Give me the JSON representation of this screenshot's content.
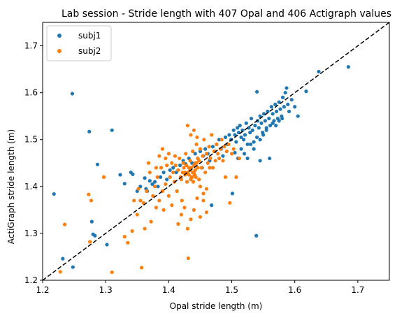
{
  "chart_data": {
    "type": "scatter",
    "title": "Lab session - Stride length with 407 Opal and 406 Actigraph values",
    "xlabel": "Opal stride length (m)",
    "ylabel": "ActiGraph stride length (m)",
    "xlim": [
      1.2,
      1.75
    ],
    "ylim": [
      1.2,
      1.75
    ],
    "xticks": [
      1.2,
      1.3,
      1.4,
      1.5,
      1.6,
      1.7
    ],
    "yticks": [
      1.2,
      1.3,
      1.4,
      1.5,
      1.6,
      1.7
    ],
    "xtick_labels": [
      "1.2",
      "1.3",
      "1.4",
      "1.5",
      "1.6",
      "1.7"
    ],
    "ytick_labels": [
      "1.2",
      "1.3",
      "1.4",
      "1.5",
      "1.6",
      "1.7"
    ],
    "grid": false,
    "legend_position": "top-left",
    "reference_line": {
      "style": "dashed",
      "color": "#000000",
      "from": [
        1.2,
        1.2
      ],
      "to": [
        1.75,
        1.75
      ]
    },
    "series": [
      {
        "name": "subj1",
        "color": "#1f77b4",
        "points": [
          [
            1.218,
            1.384
          ],
          [
            1.232,
            1.246
          ],
          [
            1.247,
            1.598
          ],
          [
            1.248,
            1.228
          ],
          [
            1.274,
            1.517
          ],
          [
            1.278,
            1.325
          ],
          [
            1.28,
            1.298
          ],
          [
            1.283,
            1.295
          ],
          [
            1.287,
            1.447
          ],
          [
            1.302,
            1.276
          ],
          [
            1.31,
            1.52
          ],
          [
            1.323,
            1.425
          ],
          [
            1.33,
            1.406
          ],
          [
            1.34,
            1.43
          ],
          [
            1.343,
            1.426
          ],
          [
            1.35,
            1.39
          ],
          [
            1.355,
            1.4
          ],
          [
            1.362,
            1.418
          ],
          [
            1.364,
            1.395
          ],
          [
            1.366,
            1.39
          ],
          [
            1.37,
            1.412
          ],
          [
            1.374,
            1.405
          ],
          [
            1.378,
            1.41
          ],
          [
            1.383,
            1.4
          ],
          [
            1.387,
            1.42
          ],
          [
            1.392,
            1.43
          ],
          [
            1.397,
            1.415
          ],
          [
            1.402,
            1.435
          ],
          [
            1.407,
            1.44
          ],
          [
            1.412,
            1.43
          ],
          [
            1.418,
            1.445
          ],
          [
            1.423,
            1.455
          ],
          [
            1.427,
            1.448
          ],
          [
            1.432,
            1.46
          ],
          [
            1.437,
            1.45
          ],
          [
            1.442,
            1.47
          ],
          [
            1.446,
            1.46
          ],
          [
            1.45,
            1.475
          ],
          [
            1.453,
            1.44
          ],
          [
            1.455,
            1.465
          ],
          [
            1.458,
            1.48
          ],
          [
            1.462,
            1.47
          ],
          [
            1.465,
            1.455
          ],
          [
            1.468,
            1.36
          ],
          [
            1.47,
            1.485
          ],
          [
            1.473,
            1.475
          ],
          [
            1.476,
            1.49
          ],
          [
            1.48,
            1.5
          ],
          [
            1.483,
            1.48
          ],
          [
            1.486,
            1.465
          ],
          [
            1.49,
            1.505
          ],
          [
            1.493,
            1.49
          ],
          [
            1.496,
            1.51
          ],
          [
            1.499,
            1.5
          ],
          [
            1.501,
            1.385
          ],
          [
            1.503,
            1.52
          ],
          [
            1.505,
            1.51
          ],
          [
            1.507,
            1.495
          ],
          [
            1.509,
            1.525
          ],
          [
            1.511,
            1.515
          ],
          [
            1.513,
            1.53
          ],
          [
            1.515,
            1.505
          ],
          [
            1.517,
            1.52
          ],
          [
            1.519,
            1.5
          ],
          [
            1.521,
            1.51
          ],
          [
            1.523,
            1.535
          ],
          [
            1.525,
            1.49
          ],
          [
            1.527,
            1.525
          ],
          [
            1.529,
            1.515
          ],
          [
            1.531,
            1.545
          ],
          [
            1.533,
            1.52
          ],
          [
            1.535,
            1.48
          ],
          [
            1.537,
            1.53
          ],
          [
            1.539,
            1.295
          ],
          [
            1.541,
            1.54
          ],
          [
            1.543,
            1.525
          ],
          [
            1.545,
            1.55
          ],
          [
            1.547,
            1.535
          ],
          [
            1.549,
            1.515
          ],
          [
            1.551,
            1.555
          ],
          [
            1.553,
            1.54
          ],
          [
            1.555,
            1.525
          ],
          [
            1.557,
            1.56
          ],
          [
            1.559,
            1.545
          ],
          [
            1.561,
            1.53
          ],
          [
            1.563,
            1.57
          ],
          [
            1.565,
            1.555
          ],
          [
            1.567,
            1.54
          ],
          [
            1.569,
            1.575
          ],
          [
            1.571,
            1.56
          ],
          [
            1.573,
            1.545
          ],
          [
            1.575,
            1.58
          ],
          [
            1.577,
            1.565
          ],
          [
            1.579,
            1.55
          ],
          [
            1.581,
            1.59
          ],
          [
            1.583,
            1.57
          ],
          [
            1.585,
            1.6
          ],
          [
            1.587,
            1.61
          ],
          [
            1.589,
            1.575
          ],
          [
            1.591,
            1.56
          ],
          [
            1.595,
            1.585
          ],
          [
            1.6,
            1.57
          ],
          [
            1.605,
            1.55
          ],
          [
            1.618,
            1.603
          ],
          [
            1.638,
            1.645
          ],
          [
            1.685,
            1.655
          ],
          [
            1.54,
            1.602
          ],
          [
            1.545,
            1.455
          ],
          [
            1.505,
            1.472
          ],
          [
            1.51,
            1.46
          ],
          [
            1.515,
            1.48
          ],
          [
            1.52,
            1.47
          ],
          [
            1.525,
            1.46
          ],
          [
            1.53,
            1.49
          ],
          [
            1.535,
            1.495
          ],
          [
            1.54,
            1.505
          ],
          [
            1.545,
            1.5
          ],
          [
            1.55,
            1.51
          ],
          [
            1.555,
            1.52
          ],
          [
            1.56,
            1.46
          ],
          [
            1.565,
            1.535
          ],
          [
            1.57,
            1.53
          ],
          [
            1.575,
            1.54
          ],
          [
            1.58,
            1.545
          ]
        ]
      },
      {
        "name": "subj2",
        "color": "#ff7f0e",
        "points": [
          [
            1.228,
            1.218
          ],
          [
            1.235,
            1.319
          ],
          [
            1.273,
            1.383
          ],
          [
            1.275,
            1.282
          ],
          [
            1.277,
            1.37
          ],
          [
            1.297,
            1.42
          ],
          [
            1.31,
            1.217
          ],
          [
            1.33,
            1.293
          ],
          [
            1.335,
            1.28
          ],
          [
            1.342,
            1.305
          ],
          [
            1.345,
            1.37
          ],
          [
            1.35,
            1.34
          ],
          [
            1.352,
            1.395
          ],
          [
            1.355,
            1.37
          ],
          [
            1.357,
            1.227
          ],
          [
            1.36,
            1.365
          ],
          [
            1.362,
            1.31
          ],
          [
            1.365,
            1.39
          ],
          [
            1.368,
            1.45
          ],
          [
            1.37,
            1.43
          ],
          [
            1.372,
            1.325
          ],
          [
            1.375,
            1.38
          ],
          [
            1.378,
            1.4
          ],
          [
            1.38,
            1.355
          ],
          [
            1.382,
            1.42
          ],
          [
            1.385,
            1.37
          ],
          [
            1.388,
            1.44
          ],
          [
            1.39,
            1.39
          ],
          [
            1.392,
            1.35
          ],
          [
            1.395,
            1.405
          ],
          [
            1.397,
            1.445
          ],
          [
            1.4,
            1.38
          ],
          [
            1.402,
            1.42
          ],
          [
            1.405,
            1.36
          ],
          [
            1.407,
            1.43
          ],
          [
            1.409,
            1.41
          ],
          [
            1.411,
            1.445
          ],
          [
            1.413,
            1.39
          ],
          [
            1.415,
            1.435
          ],
          [
            1.417,
            1.46
          ],
          [
            1.419,
            1.42
          ],
          [
            1.421,
            1.37
          ],
          [
            1.423,
            1.45
          ],
          [
            1.425,
            1.43
          ],
          [
            1.427,
            1.47
          ],
          [
            1.429,
            1.41
          ],
          [
            1.431,
            1.247
          ],
          [
            1.432,
            1.44
          ],
          [
            1.434,
            1.455
          ],
          [
            1.436,
            1.42
          ],
          [
            1.438,
            1.475
          ],
          [
            1.44,
            1.43
          ],
          [
            1.442,
            1.45
          ],
          [
            1.444,
            1.49
          ],
          [
            1.446,
            1.46
          ],
          [
            1.448,
            1.415
          ],
          [
            1.45,
            1.48
          ],
          [
            1.452,
            1.44
          ],
          [
            1.454,
            1.465
          ],
          [
            1.456,
            1.5
          ],
          [
            1.458,
            1.43
          ],
          [
            1.46,
            1.47
          ],
          [
            1.462,
            1.45
          ],
          [
            1.464,
            1.485
          ],
          [
            1.466,
            1.46
          ],
          [
            1.468,
            1.51
          ],
          [
            1.47,
            1.44
          ],
          [
            1.472,
            1.475
          ],
          [
            1.474,
            1.455
          ],
          [
            1.476,
            1.49
          ],
          [
            1.478,
            1.47
          ],
          [
            1.48,
            1.46
          ],
          [
            1.482,
            1.48
          ],
          [
            1.484,
            1.5
          ],
          [
            1.486,
            1.455
          ],
          [
            1.488,
            1.485
          ],
          [
            1.49,
            1.42
          ],
          [
            1.492,
            1.475
          ],
          [
            1.495,
            1.49
          ],
          [
            1.497,
            1.365
          ],
          [
            1.5,
            1.47
          ],
          [
            1.503,
            1.48
          ],
          [
            1.507,
            1.42
          ],
          [
            1.512,
            1.46
          ],
          [
            1.43,
            1.53
          ],
          [
            1.435,
            1.51
          ],
          [
            1.44,
            1.52
          ],
          [
            1.445,
            1.505
          ],
          [
            1.45,
            1.4
          ],
          [
            1.455,
            1.385
          ],
          [
            1.46,
            1.395
          ],
          [
            1.465,
            1.44
          ],
          [
            1.415,
            1.32
          ],
          [
            1.42,
            1.34
          ],
          [
            1.425,
            1.355
          ],
          [
            1.43,
            1.31
          ],
          [
            1.435,
            1.33
          ],
          [
            1.44,
            1.35
          ],
          [
            1.445,
            1.375
          ],
          [
            1.45,
            1.335
          ],
          [
            1.455,
            1.37
          ],
          [
            1.46,
            1.345
          ],
          [
            1.41,
            1.465
          ],
          [
            1.405,
            1.45
          ],
          [
            1.4,
            1.47
          ],
          [
            1.395,
            1.46
          ],
          [
            1.39,
            1.48
          ],
          [
            1.385,
            1.465
          ],
          [
            1.38,
            1.44
          ],
          [
            1.43,
            1.43
          ],
          [
            1.432,
            1.425
          ],
          [
            1.434,
            1.435
          ],
          [
            1.436,
            1.44
          ],
          [
            1.438,
            1.43
          ],
          [
            1.44,
            1.445
          ],
          [
            1.442,
            1.435
          ],
          [
            1.444,
            1.45
          ],
          [
            1.446,
            1.44
          ],
          [
            1.448,
            1.455
          ],
          [
            1.435,
            1.415
          ],
          [
            1.437,
            1.42
          ],
          [
            1.439,
            1.41
          ],
          [
            1.441,
            1.425
          ],
          [
            1.443,
            1.42
          ],
          [
            1.428,
            1.445
          ],
          [
            1.426,
            1.425
          ],
          [
            1.424,
            1.44
          ],
          [
            1.422,
            1.43
          ],
          [
            1.42,
            1.415
          ]
        ]
      }
    ]
  }
}
